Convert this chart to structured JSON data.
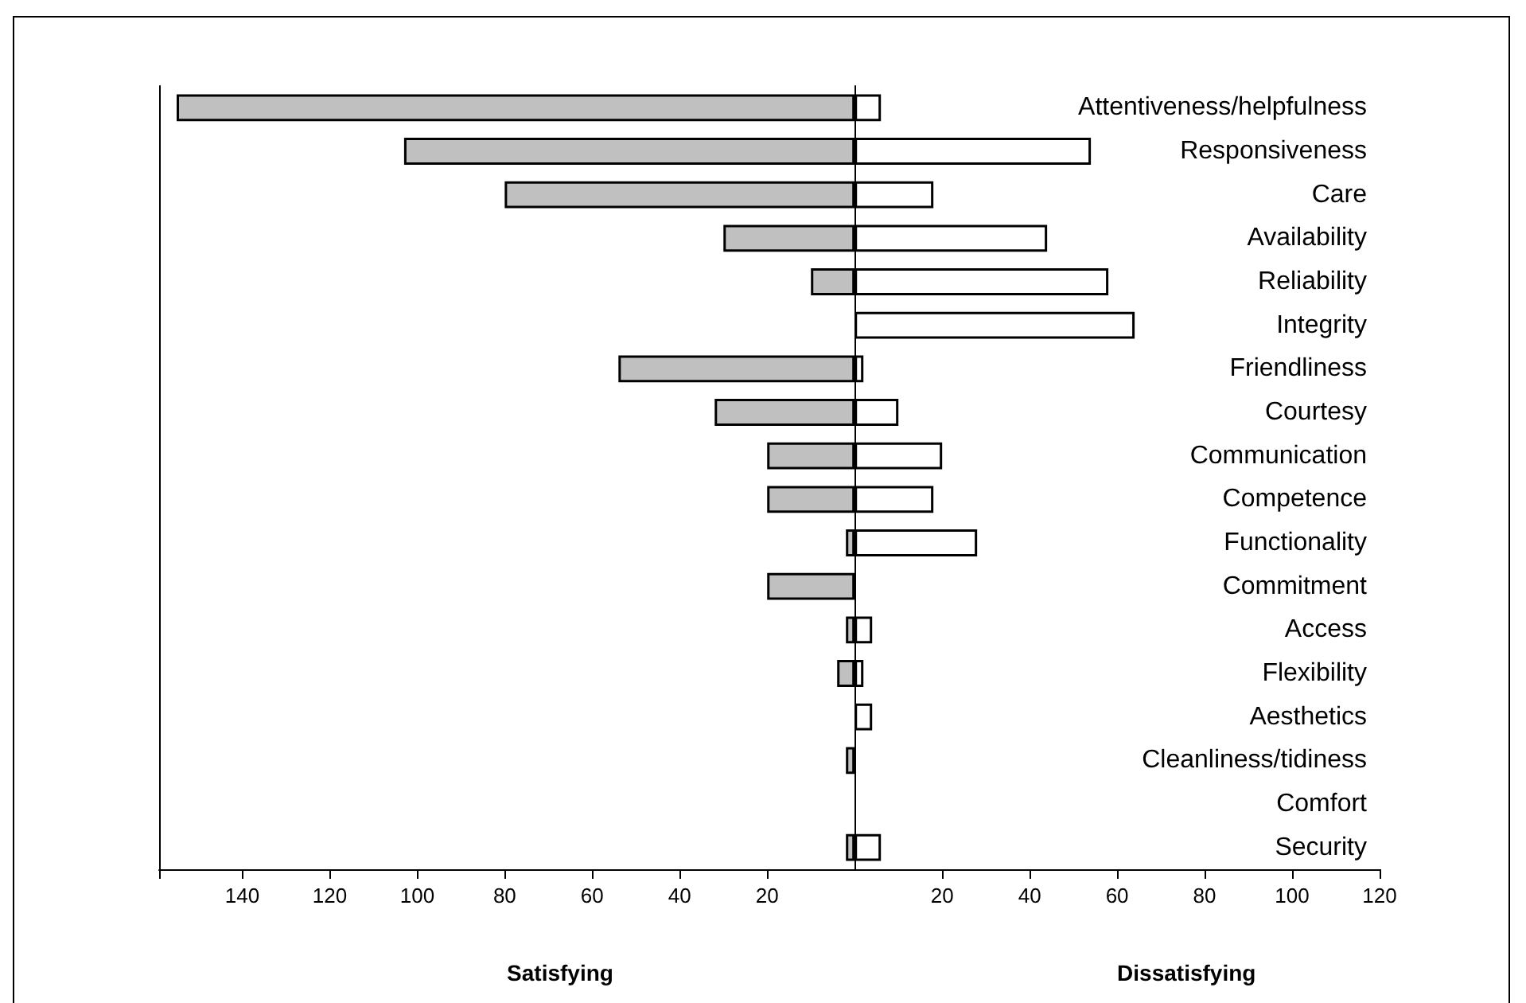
{
  "chart_data": {
    "type": "bar",
    "orientation": "horizontal",
    "categories": [
      "Attentiveness/helpfulness",
      "Responsiveness",
      "Care",
      "Availability",
      "Reliability",
      "Integrity",
      "Friendliness",
      "Courtesy",
      "Communication",
      "Competence",
      "Functionality",
      "Commitment",
      "Access",
      "Flexibility",
      "Aesthetics",
      "Cleanliness/tidiness",
      "Comfort",
      "Security"
    ],
    "series": [
      {
        "color": "#c0c0c0",
        "values": [
          -155,
          -103,
          -80,
          -30,
          -10,
          0,
          -54,
          -32,
          -20,
          -20,
          -2,
          -20,
          -2,
          -4,
          0,
          -2,
          0,
          -2
        ]
      },
      {
        "color": "#ffffff",
        "values": [
          6,
          54,
          18,
          44,
          58,
          64,
          2,
          10,
          20,
          18,
          28,
          0,
          4,
          2,
          4,
          0,
          0,
          6
        ]
      }
    ],
    "xlim": [
      -159,
      120
    ],
    "xticks": [
      {
        "value": -159,
        "label": null
      },
      {
        "value": -140,
        "label": "140"
      },
      {
        "value": -120,
        "label": "120"
      },
      {
        "value": -100,
        "label": "100"
      },
      {
        "value": -80,
        "label": "80"
      },
      {
        "value": -60,
        "label": "60"
      },
      {
        "value": -40,
        "label": "40"
      },
      {
        "value": -20,
        "label": "20"
      },
      20,
      40,
      60,
      80,
      100,
      120
    ],
    "annotations": [
      "Satisfying",
      "Dissatisfying"
    ],
    "stacked": true,
    "grid": false
  }
}
